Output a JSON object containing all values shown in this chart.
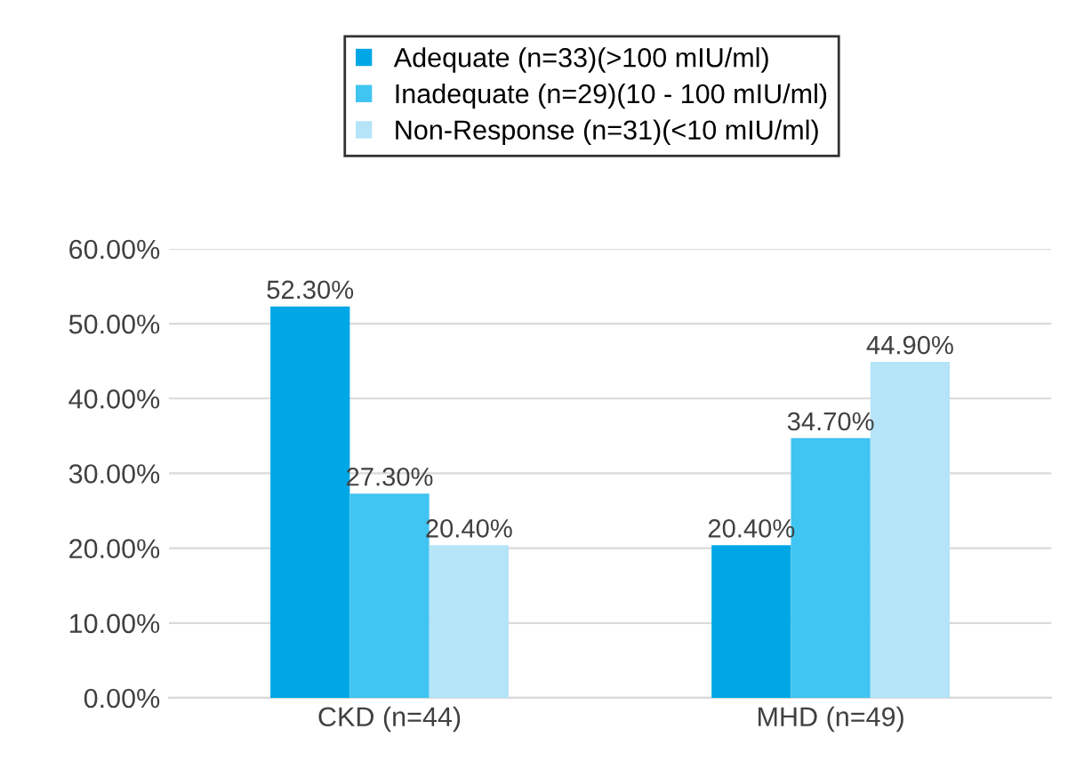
{
  "chart_data": {
    "type": "bar",
    "categories": [
      "CKD (n=44)",
      "MHD (n=49)"
    ],
    "series": [
      {
        "name": "Adequate (n=33)(>100 mIU/ml)",
        "color": "#00a7e6",
        "values": [
          52.3,
          20.4
        ],
        "value_labels": [
          "52.30%",
          "20.40%"
        ]
      },
      {
        "name": "Inadequate (n=29)(10 - 100 mIU/ml)",
        "color": "#40c4f1",
        "values": [
          27.3,
          34.7
        ],
        "value_labels": [
          "27.30%",
          "34.70%"
        ]
      },
      {
        "name": "Non-Response (n=31)(<10 mIU/ml)",
        "color": "#b5e4f8",
        "values": [
          20.4,
          44.9
        ],
        "value_labels": [
          "20.40%",
          "44.90%"
        ]
      }
    ],
    "ylim": [
      0,
      60
    ],
    "yticks": [
      {
        "value": 0,
        "label": "0.00%"
      },
      {
        "value": 10,
        "label": "10.00%"
      },
      {
        "value": 20,
        "label": "20.00%"
      },
      {
        "value": 30,
        "label": "30.00%"
      },
      {
        "value": 40,
        "label": "40.00%"
      },
      {
        "value": 50,
        "label": "50.00%"
      },
      {
        "value": 60,
        "label": "60.00%"
      }
    ],
    "grid": "y",
    "legend": "top"
  }
}
